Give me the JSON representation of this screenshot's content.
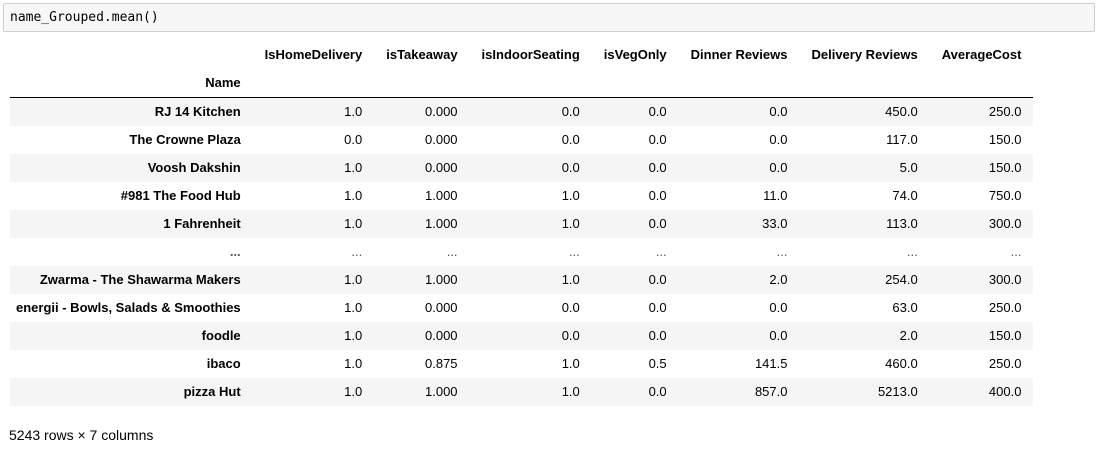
{
  "code_cell": {
    "code": "name_Grouped.mean()"
  },
  "dataframe": {
    "index_name": "Name",
    "columns": [
      "IsHomeDelivery",
      "isTakeaway",
      "isIndoorSeating",
      "isVegOnly",
      "Dinner Reviews",
      "Delivery Reviews",
      "AverageCost"
    ],
    "rows": [
      {
        "name": "RJ 14 Kitchen",
        "values": [
          "1.0",
          "0.000",
          "0.0",
          "0.0",
          "0.0",
          "450.0",
          "250.0"
        ]
      },
      {
        "name": "The Crowne Plaza",
        "values": [
          "0.0",
          "0.000",
          "0.0",
          "0.0",
          "0.0",
          "117.0",
          "150.0"
        ]
      },
      {
        "name": "Voosh Dakshin",
        "values": [
          "1.0",
          "0.000",
          "0.0",
          "0.0",
          "0.0",
          "5.0",
          "150.0"
        ]
      },
      {
        "name": "#981 The Food Hub",
        "values": [
          "1.0",
          "1.000",
          "1.0",
          "0.0",
          "11.0",
          "74.0",
          "750.0"
        ]
      },
      {
        "name": "1 Fahrenheit",
        "values": [
          "1.0",
          "1.000",
          "1.0",
          "0.0",
          "33.0",
          "113.0",
          "300.0"
        ]
      },
      {
        "name": "...",
        "values": [
          "...",
          "...",
          "...",
          "...",
          "...",
          "...",
          "..."
        ]
      },
      {
        "name": "Zwarma - The Shawarma Makers",
        "values": [
          "1.0",
          "1.000",
          "1.0",
          "0.0",
          "2.0",
          "254.0",
          "300.0"
        ]
      },
      {
        "name": "energii - Bowls, Salads & Smoothies",
        "values": [
          "1.0",
          "0.000",
          "0.0",
          "0.0",
          "0.0",
          "63.0",
          "250.0"
        ]
      },
      {
        "name": "foodle",
        "values": [
          "1.0",
          "0.000",
          "0.0",
          "0.0",
          "0.0",
          "2.0",
          "150.0"
        ]
      },
      {
        "name": "ibaco",
        "values": [
          "1.0",
          "0.875",
          "1.0",
          "0.5",
          "141.5",
          "460.0",
          "250.0"
        ]
      },
      {
        "name": "pizza Hut",
        "values": [
          "1.0",
          "1.000",
          "1.0",
          "0.0",
          "857.0",
          "5213.0",
          "400.0"
        ]
      }
    ],
    "shape_text": "5243 rows × 7 columns"
  }
}
